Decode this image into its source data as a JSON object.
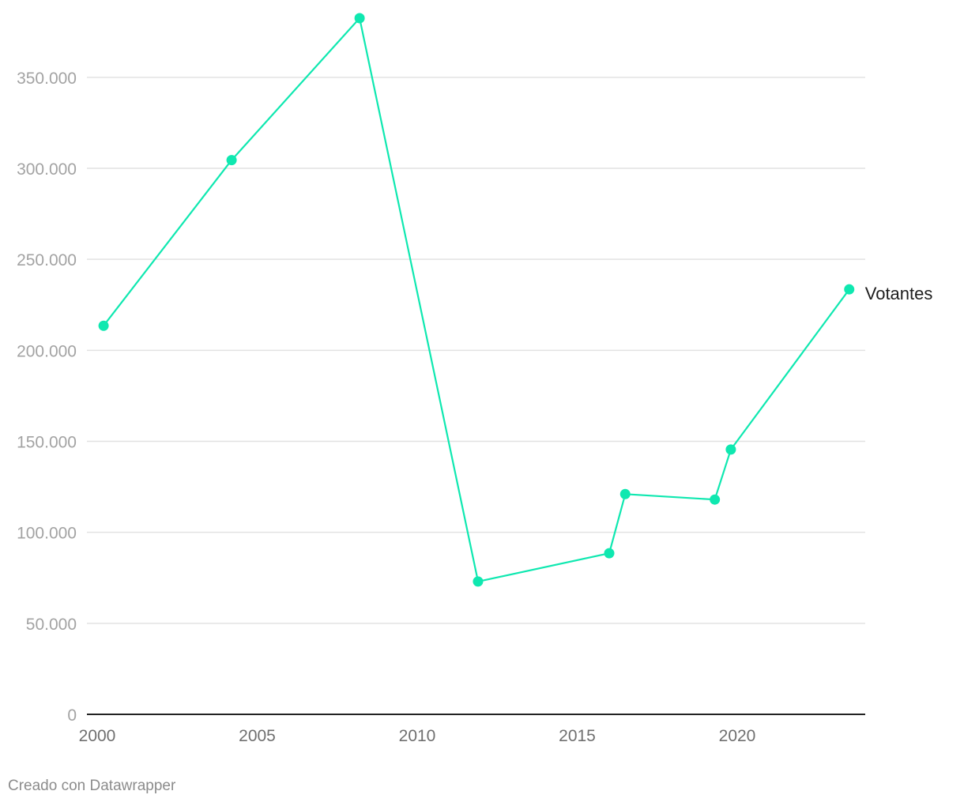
{
  "chart_data": {
    "type": "line",
    "xlim": [
      2000,
      2024
    ],
    "ylim": [
      0,
      380000
    ],
    "yticks": [
      0,
      50000,
      100000,
      150000,
      200000,
      250000,
      300000,
      350000
    ],
    "ytick_labels": [
      "0",
      "50.000",
      "100.000",
      "150.000",
      "200.000",
      "250.000",
      "300.000",
      "350.000"
    ],
    "xticks": [
      2000,
      2005,
      2010,
      2015,
      2020
    ],
    "xtick_labels": [
      "2000",
      "2005",
      "2010",
      "2015",
      "2020"
    ],
    "grid": true,
    "series": [
      {
        "name": "Votantes",
        "color": "#0fe8b0",
        "points": [
          {
            "x": 2000.2,
            "y": 213500
          },
          {
            "x": 2004.2,
            "y": 304500
          },
          {
            "x": 2008.2,
            "y": 382500
          },
          {
            "x": 2011.9,
            "y": 73000
          },
          {
            "x": 2016.0,
            "y": 88500
          },
          {
            "x": 2016.5,
            "y": 121000
          },
          {
            "x": 2019.3,
            "y": 118000
          },
          {
            "x": 2019.8,
            "y": 145500
          },
          {
            "x": 2023.5,
            "y": 233500
          }
        ]
      }
    ]
  },
  "footer": {
    "credit": "Creado con Datawrapper"
  }
}
